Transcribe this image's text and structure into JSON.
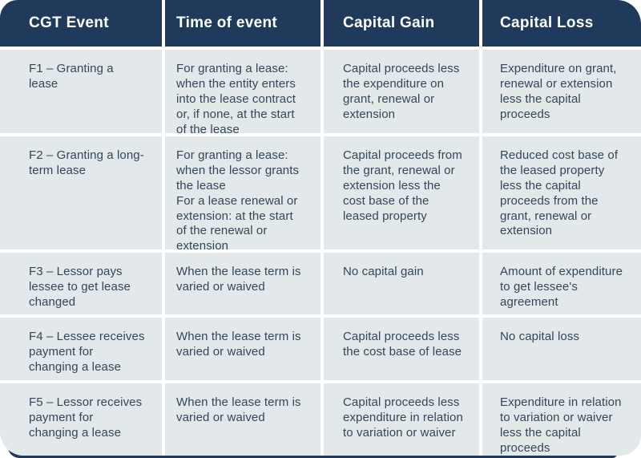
{
  "table": {
    "title": "CGT events F1–F5 lease table",
    "colors": {
      "header_bg": "#203a5c",
      "header_text": "#ffffff",
      "body_bg": "#e3e8ea",
      "body_text": "#33475a",
      "gutter": "#ffffff"
    },
    "headers": [
      "CGT Event",
      "Time of event",
      "Capital Gain",
      "Capital Loss"
    ],
    "rows": [
      {
        "event": "F1 – Granting a lease",
        "time": "For granting a lease: when the entity enters into the lease contract or, if none, at the start of the lease",
        "gain": "Capital proceeds less the expenditure on grant, renewal or extension",
        "loss": "Expenditure on grant, renewal or extension less the capital proceeds"
      },
      {
        "event": "F2 – Granting a long-term lease",
        "time": "For granting a lease: when the lessor grants the lease\nFor a lease renewal or extension: at the start of the renewal or extension",
        "gain": "Capital proceeds from the grant, renewal or extension less the cost base of the leased property",
        "loss": "Reduced cost base of the leased property less the capital proceeds from the grant, renewal or extension"
      },
      {
        "event": "F3 – Lessor pays lessee to get lease changed",
        "time": "When the lease term is varied or waived",
        "gain": "No capital gain",
        "loss": "Amount of expenditure to get lessee's agreement"
      },
      {
        "event": "F4 – Lessee receives payment for changing a lease",
        "time": "When the lease term is varied or waived",
        "gain": "Capital proceeds less the cost base of lease",
        "loss": "No capital loss"
      },
      {
        "event": "F5 – Lessor receives payment for changing a lease",
        "time": "When the lease term is varied or waived",
        "gain": "Capital proceeds less expenditure in relation to variation or waiver",
        "loss": "Expenditure in relation to variation or waiver less the capital proceeds"
      }
    ]
  }
}
